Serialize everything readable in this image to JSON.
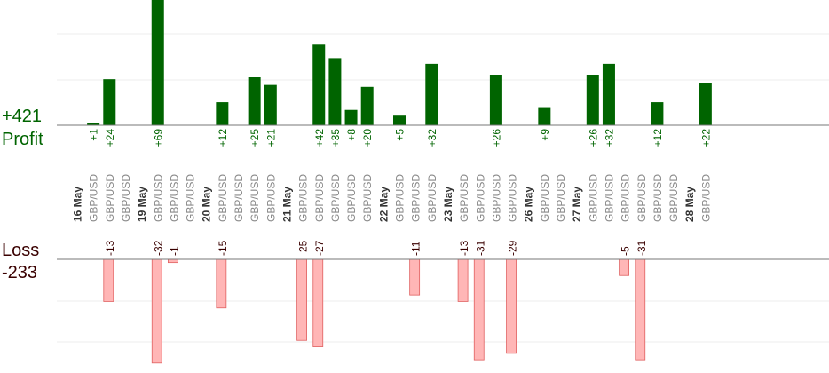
{
  "chart_data": {
    "type": "bar",
    "profit_total_label": "+421",
    "profit_label": "Profit",
    "loss_label": "Loss",
    "loss_total_label": "-233",
    "pair_label": "GBP/USD",
    "days": [
      {
        "date": "16 May",
        "profits": [
          null,
          1,
          24,
          null
        ],
        "losses": [
          null,
          null,
          -13,
          null
        ]
      },
      {
        "date": "19 May",
        "profits": [
          null,
          69,
          null,
          null
        ],
        "losses": [
          null,
          -32,
          -1,
          null
        ]
      },
      {
        "date": "20 May",
        "profits": [
          null,
          12,
          null,
          25,
          21
        ],
        "losses": [
          null,
          -15,
          null,
          null,
          null
        ]
      },
      {
        "date": "21 May",
        "profits": [
          null,
          null,
          42,
          35,
          8,
          20
        ],
        "losses": [
          null,
          -25,
          -27,
          null,
          null,
          null
        ]
      },
      {
        "date": "22 May",
        "profits": [
          null,
          5,
          null,
          32
        ],
        "losses": [
          null,
          null,
          -11,
          null
        ]
      },
      {
        "date": "23 May",
        "profits": [
          null,
          null,
          null,
          26,
          null
        ],
        "losses": [
          null,
          -13,
          -31,
          null,
          -29
        ]
      },
      {
        "date": "26 May",
        "profits": [
          null,
          9,
          null
        ],
        "losses": [
          null,
          null,
          null
        ]
      },
      {
        "date": "27 May",
        "profits": [
          null,
          26,
          32,
          null,
          null,
          12,
          null
        ],
        "losses": [
          null,
          null,
          null,
          -5,
          -31,
          null,
          null
        ]
      },
      {
        "date": "28 May",
        "profits": [
          null,
          22
        ],
        "losses": [
          null,
          null
        ]
      }
    ],
    "colors": {
      "profit": "#006400",
      "loss": "#ffb6b6",
      "loss_stroke": "#e06060",
      "loss_text": "#3a0000"
    },
    "grid": true
  }
}
